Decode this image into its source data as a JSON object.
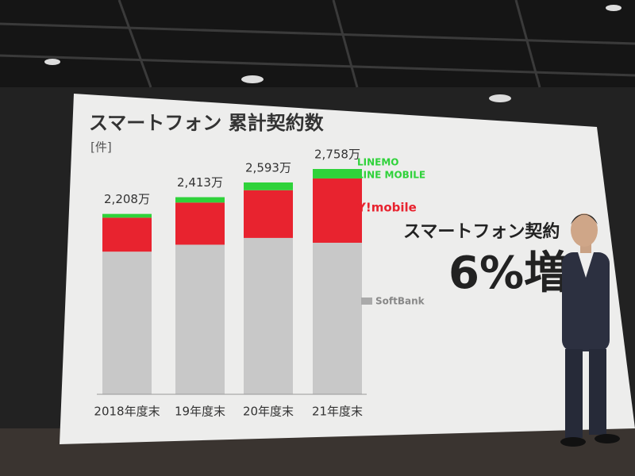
{
  "chart_data": {
    "type": "stacked-bar",
    "title": "スマートフォン 累計契約数",
    "unit_label": "[件]",
    "categories": [
      "2018年度末",
      "19年度末",
      "20年度末",
      "21年度末"
    ],
    "series": [
      {
        "name": "SoftBank",
        "color": "#c8c8c8",
        "values": [
          1746,
          1831,
          1914,
          1855
        ]
      },
      {
        "name": "Y!mobile",
        "color": "#e8232f",
        "values": [
          416,
          516,
          584,
          787
        ]
      },
      {
        "name": "LINEMO",
        "sub_name": "LINE MOBILE",
        "color": "#2fd23a",
        "values": [
          46,
          66,
          95,
          116
        ]
      }
    ],
    "totals": {
      "values": [
        2208,
        2413,
        2593,
        2758
      ],
      "value_labels": [
        "2,208万",
        "2,413万",
        "2,593万",
        "2,758万"
      ]
    },
    "annotation": "スマートフォン契約",
    "highlight": "6%増"
  }
}
